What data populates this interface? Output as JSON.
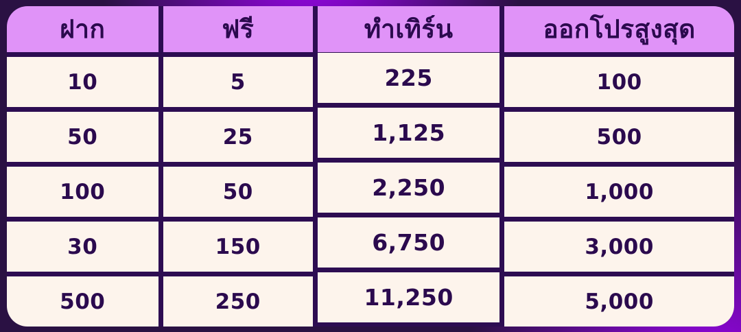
{
  "colors": {
    "bg_dark": "#2a1143",
    "bg_bright": "#9d04ef",
    "grid_line": "#2d0d52",
    "header_bg": "#e093f8",
    "cell_bg": "#fdf4ec",
    "ink": "#2b0a4e"
  },
  "chart_data": {
    "type": "table",
    "title": "",
    "columns": [
      "ฝาก",
      "ฟรี",
      "ทำเทิร์น",
      "ออกโปรสูงสุด"
    ],
    "rows": [
      [
        "10",
        "5",
        "225",
        "100"
      ],
      [
        "50",
        "25",
        "1,125",
        "500"
      ],
      [
        "100",
        "50",
        "2,250",
        "1,000"
      ],
      [
        "30",
        "150",
        "6,750",
        "3,000"
      ],
      [
        "500",
        "250",
        "11,250",
        "5,000"
      ]
    ]
  }
}
